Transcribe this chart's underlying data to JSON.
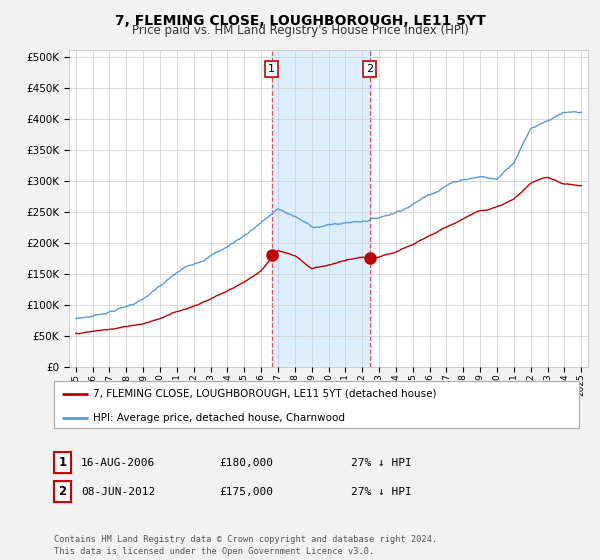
{
  "title": "7, FLEMING CLOSE, LOUGHBOROUGH, LE11 5YT",
  "subtitle": "Price paid vs. HM Land Registry's House Price Index (HPI)",
  "ylabel_ticks": [
    "£0",
    "£50K",
    "£100K",
    "£150K",
    "£200K",
    "£250K",
    "£300K",
    "£350K",
    "£400K",
    "£450K",
    "£500K"
  ],
  "ytick_values": [
    0,
    50000,
    100000,
    150000,
    200000,
    250000,
    300000,
    350000,
    400000,
    450000,
    500000
  ],
  "ylim": [
    0,
    510000
  ],
  "hpi_color": "#5b9bd5",
  "price_color": "#c00000",
  "bg_color": "#f2f2f2",
  "plot_bg": "#ffffff",
  "shade_color": "#ddeeff",
  "vline_color": "#e05050",
  "purchase1_year": 2006.62,
  "purchase1_price": 180000,
  "purchase2_year": 2012.44,
  "purchase2_price": 175000,
  "legend_entries": [
    "7, FLEMING CLOSE, LOUGHBOROUGH, LE11 5YT (detached house)",
    "HPI: Average price, detached house, Charnwood"
  ],
  "table_rows": [
    [
      "1",
      "16-AUG-2006",
      "£180,000",
      "27% ↓ HPI"
    ],
    [
      "2",
      "08-JUN-2012",
      "£175,000",
      "27% ↓ HPI"
    ]
  ],
  "footer": "Contains HM Land Registry data © Crown copyright and database right 2024.\nThis data is licensed under the Open Government Licence v3.0.",
  "xlabel_years": [
    1995,
    1996,
    1997,
    1998,
    1999,
    2000,
    2001,
    2002,
    2003,
    2004,
    2005,
    2006,
    2007,
    2008,
    2009,
    2010,
    2011,
    2012,
    2013,
    2014,
    2015,
    2016,
    2017,
    2018,
    2019,
    2020,
    2021,
    2022,
    2023,
    2024,
    2025
  ],
  "hpi_knots_x": [
    1995,
    1996,
    1997,
    1998,
    1999,
    2000,
    2001,
    2002,
    2003,
    2004,
    2005,
    2006,
    2007,
    2008,
    2009,
    2010,
    2011,
    2012,
    2013,
    2014,
    2015,
    2016,
    2017,
    2018,
    2019,
    2020,
    2021,
    2022,
    2023,
    2024,
    2025
  ],
  "hpi_knots_y": [
    78000,
    82000,
    90000,
    98000,
    110000,
    128000,
    148000,
    163000,
    178000,
    192000,
    210000,
    232000,
    252000,
    240000,
    222000,
    225000,
    228000,
    232000,
    238000,
    248000,
    262000,
    278000,
    295000,
    305000,
    310000,
    305000,
    335000,
    390000,
    405000,
    415000,
    410000
  ],
  "red_knots_x": [
    1995,
    1996,
    1997,
    1998,
    1999,
    2000,
    2001,
    2002,
    2003,
    2004,
    2005,
    2006,
    2006.62,
    2007,
    2008,
    2009,
    2010,
    2011,
    2012,
    2012.44,
    2013,
    2014,
    2015,
    2016,
    2017,
    2018,
    2019,
    2020,
    2021,
    2022,
    2023,
    2024,
    2025
  ],
  "red_knots_y": [
    54000,
    57000,
    60000,
    64000,
    70000,
    80000,
    90000,
    100000,
    112000,
    125000,
    140000,
    158000,
    180000,
    192000,
    182000,
    162000,
    168000,
    175000,
    180000,
    175000,
    178000,
    185000,
    195000,
    210000,
    222000,
    238000,
    252000,
    258000,
    270000,
    295000,
    305000,
    295000,
    292000
  ]
}
